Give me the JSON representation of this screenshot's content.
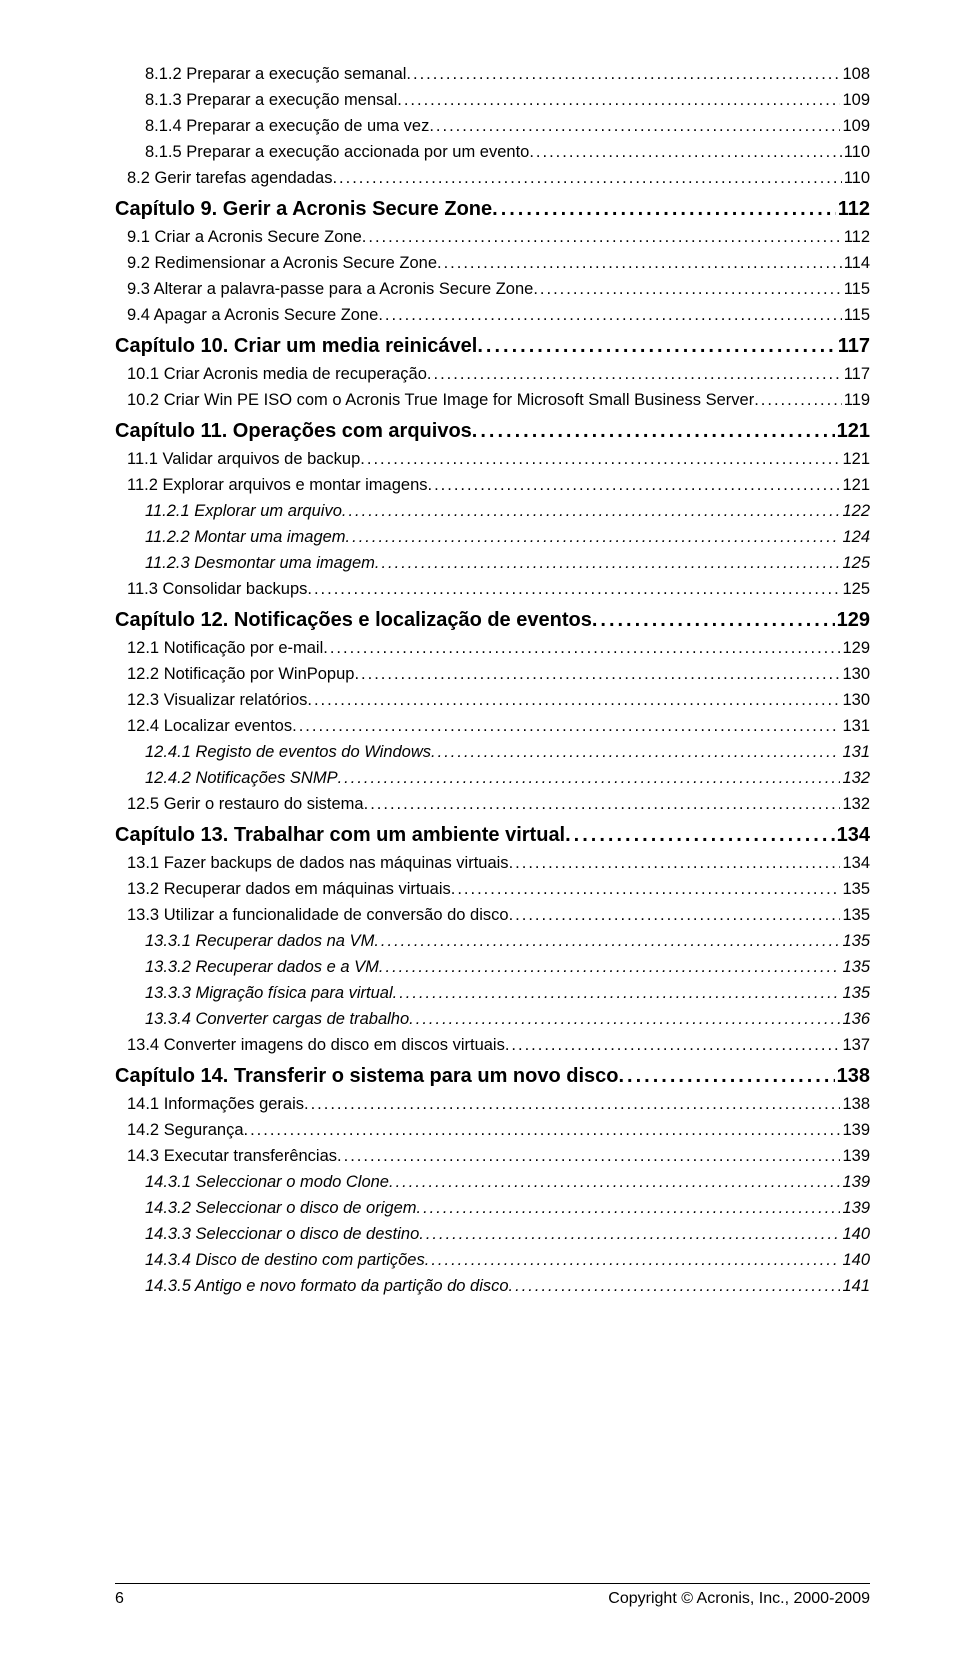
{
  "toc": [
    {
      "level": "l3-noitalic",
      "label": "8.1.2  Preparar a execução semanal",
      "page": "108"
    },
    {
      "level": "l3-noitalic",
      "label": "8.1.3  Preparar a execução mensal",
      "page": "109"
    },
    {
      "level": "l3-noitalic",
      "label": "8.1.4  Preparar a execução de uma vez",
      "page": "109"
    },
    {
      "level": "l3-noitalic",
      "label": "8.1.5  Preparar a execução accionada por um evento",
      "page": "110"
    },
    {
      "level": "l2",
      "label": "8.2  Gerir tarefas agendadas",
      "page": "110"
    },
    {
      "level": "chapter",
      "label": "Capítulo 9.  Gerir a Acronis Secure Zone",
      "page": "112"
    },
    {
      "level": "l2",
      "label": "9.1  Criar a Acronis Secure Zone",
      "page": "112"
    },
    {
      "level": "l2",
      "label": "9.2  Redimensionar a Acronis Secure Zone",
      "page": "114"
    },
    {
      "level": "l2",
      "label": "9.3  Alterar a palavra-passe para a Acronis Secure Zone",
      "page": "115"
    },
    {
      "level": "l2",
      "label": "9.4  Apagar a Acronis Secure Zone",
      "page": "115"
    },
    {
      "level": "chapter",
      "label": "Capítulo 10.  Criar um media reinicável",
      "page": "117"
    },
    {
      "level": "l2",
      "label": "10.1  Criar Acronis media de recuperação",
      "page": "117"
    },
    {
      "level": "l2",
      "label": "10.2  Criar Win PE ISO com o Acronis True Image for Microsoft Small Business Server",
      "page": "119"
    },
    {
      "level": "chapter",
      "label": "Capítulo 11.  Operações com arquivos",
      "page": "121"
    },
    {
      "level": "l2",
      "label": "11.1  Validar arquivos de backup",
      "page": "121"
    },
    {
      "level": "l2",
      "label": "11.2  Explorar arquivos e montar imagens",
      "page": "121"
    },
    {
      "level": "l3",
      "label": "11.2.1  Explorar um arquivo",
      "page": "122"
    },
    {
      "level": "l3",
      "label": "11.2.2  Montar uma imagem",
      "page": "124"
    },
    {
      "level": "l3",
      "label": "11.2.3  Desmontar uma imagem",
      "page": "125"
    },
    {
      "level": "l2",
      "label": "11.3  Consolidar backups",
      "page": "125"
    },
    {
      "level": "chapter",
      "label": "Capítulo 12.  Notificações e localização de eventos",
      "page": "129"
    },
    {
      "level": "l2",
      "label": "12.1  Notificação por e-mail",
      "page": "129"
    },
    {
      "level": "l2",
      "label": "12.2  Notificação por WinPopup",
      "page": "130"
    },
    {
      "level": "l2",
      "label": "12.3  Visualizar relatórios",
      "page": "130"
    },
    {
      "level": "l2",
      "label": "12.4  Localizar eventos",
      "page": "131"
    },
    {
      "level": "l3",
      "label": "12.4.1  Registo de eventos do Windows",
      "page": "131"
    },
    {
      "level": "l3",
      "label": "12.4.2  Notificações SNMP",
      "page": "132"
    },
    {
      "level": "l2",
      "label": "12.5  Gerir o restauro do sistema",
      "page": "132"
    },
    {
      "level": "chapter",
      "label": "Capítulo 13.  Trabalhar com um ambiente virtual",
      "page": "134"
    },
    {
      "level": "l2",
      "label": "13.1  Fazer backups de dados nas máquinas virtuais",
      "page": "134"
    },
    {
      "level": "l2",
      "label": "13.2  Recuperar dados em máquinas virtuais",
      "page": "135"
    },
    {
      "level": "l2",
      "label": "13.3  Utilizar a funcionalidade de conversão do disco",
      "page": "135"
    },
    {
      "level": "l3",
      "label": "13.3.1  Recuperar dados na VM",
      "page": "135"
    },
    {
      "level": "l3",
      "label": "13.3.2  Recuperar dados e a VM",
      "page": "135"
    },
    {
      "level": "l3",
      "label": "13.3.3  Migração física para virtual",
      "page": "135"
    },
    {
      "level": "l3",
      "label": "13.3.4  Converter cargas de trabalho",
      "page": "136"
    },
    {
      "level": "l2",
      "label": "13.4  Converter imagens do disco em discos virtuais",
      "page": "137"
    },
    {
      "level": "chapter",
      "label": "Capítulo 14.  Transferir o sistema para um novo disco",
      "page": "138"
    },
    {
      "level": "l2",
      "label": "14.1  Informações gerais",
      "page": "138"
    },
    {
      "level": "l2",
      "label": "14.2  Segurança",
      "page": "139"
    },
    {
      "level": "l2",
      "label": "14.3  Executar transferências",
      "page": "139"
    },
    {
      "level": "l3",
      "label": "14.3.1  Seleccionar o modo Clone",
      "page": "139"
    },
    {
      "level": "l3",
      "label": "14.3.2  Seleccionar o disco de origem",
      "page": "139"
    },
    {
      "level": "l3",
      "label": "14.3.3  Seleccionar o disco de destino",
      "page": "140"
    },
    {
      "level": "l3",
      "label": "14.3.4  Disco de destino com partições",
      "page": "140"
    },
    {
      "level": "l3",
      "label": "14.3.5  Antigo e novo formato da partição do disco",
      "page": "141"
    }
  ],
  "footer": {
    "page_number": "6",
    "copyright": "Copyright © Acronis, Inc., 2000-2009"
  }
}
